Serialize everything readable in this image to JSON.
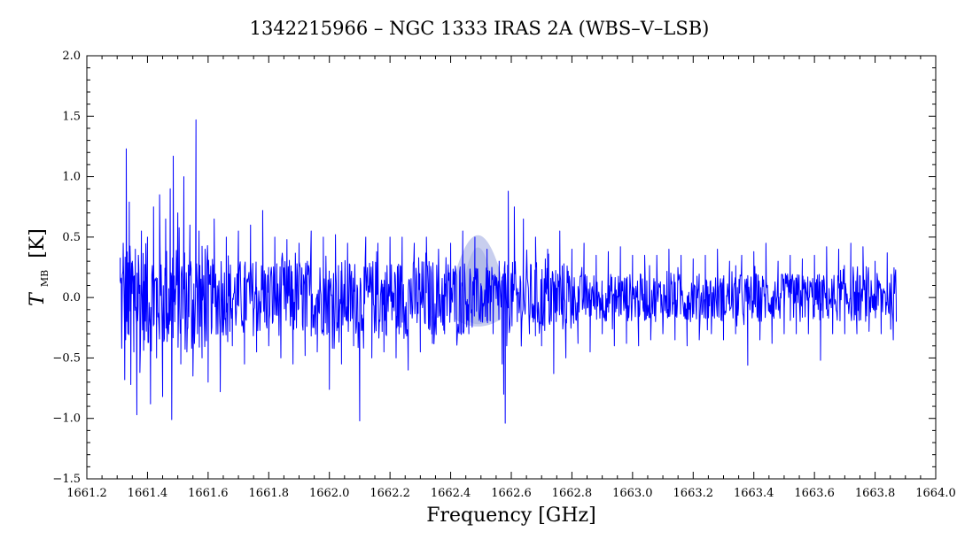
{
  "chart_data": {
    "type": "line",
    "title": "1342215966 – NGC 1333 IRAS 2A (WBS–V–LSB)",
    "xlabel": "Frequency [GHz]",
    "ylabel_main": "T",
    "ylabel_sub": "MB",
    "ylabel_unit": "[K]",
    "xlim": [
      1661.2,
      1664.0
    ],
    "ylim": [
      -1.5,
      2.0
    ],
    "xticks": [
      1661.2,
      1661.4,
      1661.6,
      1661.8,
      1662.0,
      1662.2,
      1662.4,
      1662.6,
      1662.8,
      1663.0,
      1663.2,
      1663.4,
      1663.6,
      1663.8,
      1664.0
    ],
    "xtick_labels": [
      "1661.2",
      "1661.4",
      "1661.6",
      "1661.8",
      "1662.0",
      "1662.2",
      "1662.4",
      "1662.6",
      "1662.8",
      "1663.0",
      "1663.2",
      "1663.4",
      "1663.6",
      "1663.8",
      "1664.0"
    ],
    "yticks": [
      -1.5,
      -1.0,
      -0.5,
      0.0,
      0.5,
      1.0,
      1.5,
      2.0
    ],
    "ytick_labels": [
      "−1.5",
      "−1.0",
      "−0.5",
      "0.0",
      "0.5",
      "1.0",
      "1.5",
      "2.0"
    ],
    "grid": false,
    "series": [
      {
        "color": "#0000ff",
        "x_start": 1661.31,
        "x_end": 1663.87,
        "points": [
          [
            1661.31,
            0.33
          ],
          [
            1661.315,
            -0.42
          ],
          [
            1661.32,
            0.45
          ],
          [
            1661.325,
            -0.68
          ],
          [
            1661.33,
            1.23
          ],
          [
            1661.335,
            -0.3
          ],
          [
            1661.34,
            0.79
          ],
          [
            1661.345,
            -0.72
          ],
          [
            1661.35,
            0.3
          ],
          [
            1661.355,
            -0.45
          ],
          [
            1661.36,
            0.4
          ],
          [
            1661.365,
            -0.97
          ],
          [
            1661.37,
            0.35
          ],
          [
            1661.375,
            -0.62
          ],
          [
            1661.38,
            0.55
          ],
          [
            1661.39,
            -0.35
          ],
          [
            1661.4,
            0.5
          ],
          [
            1661.41,
            -0.88
          ],
          [
            1661.42,
            0.75
          ],
          [
            1661.43,
            -0.5
          ],
          [
            1661.44,
            0.85
          ],
          [
            1661.45,
            -0.82
          ],
          [
            1661.46,
            0.65
          ],
          [
            1661.47,
            -0.3
          ],
          [
            1661.475,
            0.9
          ],
          [
            1661.48,
            -1.01
          ],
          [
            1661.485,
            1.17
          ],
          [
            1661.49,
            -0.2
          ],
          [
            1661.5,
            0.7
          ],
          [
            1661.51,
            -0.55
          ],
          [
            1661.52,
            1.0
          ],
          [
            1661.53,
            -0.45
          ],
          [
            1661.54,
            0.6
          ],
          [
            1661.55,
            -0.65
          ],
          [
            1661.56,
            1.47
          ],
          [
            1661.565,
            -0.3
          ],
          [
            1661.57,
            0.55
          ],
          [
            1661.58,
            -0.5
          ],
          [
            1661.59,
            0.4
          ],
          [
            1661.6,
            -0.7
          ],
          [
            1661.62,
            0.65
          ],
          [
            1661.64,
            -0.78
          ],
          [
            1661.66,
            0.5
          ],
          [
            1661.68,
            -0.4
          ],
          [
            1661.7,
            0.55
          ],
          [
            1661.72,
            -0.55
          ],
          [
            1661.74,
            0.6
          ],
          [
            1661.76,
            -0.45
          ],
          [
            1661.78,
            0.72
          ],
          [
            1661.8,
            -0.4
          ],
          [
            1661.82,
            0.5
          ],
          [
            1661.84,
            -0.5
          ],
          [
            1661.86,
            0.48
          ],
          [
            1661.88,
            -0.55
          ],
          [
            1661.9,
            0.45
          ],
          [
            1661.92,
            -0.48
          ],
          [
            1661.94,
            0.55
          ],
          [
            1661.96,
            -0.45
          ],
          [
            1661.98,
            0.5
          ],
          [
            1662.0,
            -0.76
          ],
          [
            1662.02,
            0.52
          ],
          [
            1662.04,
            -0.55
          ],
          [
            1662.06,
            0.45
          ],
          [
            1662.08,
            -0.4
          ],
          [
            1662.1,
            -1.02
          ],
          [
            1662.12,
            0.5
          ],
          [
            1662.14,
            -0.5
          ],
          [
            1662.16,
            0.45
          ],
          [
            1662.18,
            -0.45
          ],
          [
            1662.2,
            0.5
          ],
          [
            1662.22,
            -0.5
          ],
          [
            1662.24,
            0.5
          ],
          [
            1662.26,
            -0.6
          ],
          [
            1662.28,
            0.45
          ],
          [
            1662.3,
            -0.45
          ],
          [
            1662.32,
            0.5
          ],
          [
            1662.34,
            -0.38
          ],
          [
            1662.36,
            0.4
          ],
          [
            1662.38,
            -0.3
          ],
          [
            1662.4,
            0.45
          ],
          [
            1662.42,
            -0.35
          ],
          [
            1662.44,
            0.55
          ],
          [
            1662.46,
            -0.3
          ],
          [
            1662.48,
            0.5
          ],
          [
            1662.5,
            -0.2
          ],
          [
            1662.52,
            0.4
          ],
          [
            1662.54,
            -0.3
          ],
          [
            1662.56,
            0.3
          ],
          [
            1662.57,
            -0.55
          ],
          [
            1662.575,
            -0.8
          ],
          [
            1662.58,
            -1.04
          ],
          [
            1662.585,
            -0.4
          ],
          [
            1662.59,
            0.88
          ],
          [
            1662.6,
            0.2
          ],
          [
            1662.61,
            0.75
          ],
          [
            1662.62,
            -0.2
          ],
          [
            1662.64,
            0.65
          ],
          [
            1662.66,
            -0.3
          ],
          [
            1662.68,
            0.5
          ],
          [
            1662.7,
            -0.4
          ],
          [
            1662.72,
            0.4
          ],
          [
            1662.74,
            -0.63
          ],
          [
            1662.76,
            0.55
          ],
          [
            1662.78,
            -0.5
          ],
          [
            1662.8,
            0.4
          ],
          [
            1662.82,
            -0.38
          ],
          [
            1662.84,
            0.45
          ],
          [
            1662.86,
            -0.45
          ],
          [
            1662.88,
            0.35
          ],
          [
            1662.9,
            -0.3
          ],
          [
            1662.92,
            0.38
          ],
          [
            1662.94,
            -0.4
          ],
          [
            1662.96,
            0.42
          ],
          [
            1662.98,
            -0.38
          ],
          [
            1663.0,
            0.35
          ],
          [
            1663.02,
            -0.4
          ],
          [
            1663.04,
            0.35
          ],
          [
            1663.06,
            -0.35
          ],
          [
            1663.08,
            0.35
          ],
          [
            1663.1,
            -0.3
          ],
          [
            1663.12,
            0.4
          ],
          [
            1663.14,
            -0.35
          ],
          [
            1663.16,
            0.35
          ],
          [
            1663.18,
            -0.4
          ],
          [
            1663.2,
            0.32
          ],
          [
            1663.22,
            -0.35
          ],
          [
            1663.24,
            0.35
          ],
          [
            1663.26,
            -0.3
          ],
          [
            1663.28,
            0.4
          ],
          [
            1663.3,
            -0.35
          ],
          [
            1663.32,
            0.3
          ],
          [
            1663.34,
            -0.3
          ],
          [
            1663.36,
            0.35
          ],
          [
            1663.38,
            -0.56
          ],
          [
            1663.4,
            0.38
          ],
          [
            1663.42,
            -0.35
          ],
          [
            1663.44,
            0.45
          ],
          [
            1663.46,
            -0.38
          ],
          [
            1663.48,
            0.3
          ],
          [
            1663.5,
            -0.3
          ],
          [
            1663.52,
            0.35
          ],
          [
            1663.54,
            -0.3
          ],
          [
            1663.56,
            0.32
          ],
          [
            1663.58,
            -0.3
          ],
          [
            1663.6,
            0.35
          ],
          [
            1663.62,
            -0.52
          ],
          [
            1663.64,
            0.42
          ],
          [
            1663.66,
            -0.3
          ],
          [
            1663.68,
            0.4
          ],
          [
            1663.7,
            -0.3
          ],
          [
            1663.72,
            0.45
          ],
          [
            1663.74,
            -0.3
          ],
          [
            1663.76,
            0.42
          ],
          [
            1663.78,
            -0.28
          ],
          [
            1663.8,
            0.3
          ],
          [
            1663.82,
            -0.3
          ],
          [
            1663.84,
            0.37
          ],
          [
            1663.86,
            -0.35
          ],
          [
            1663.87,
            -0.2
          ]
        ],
        "noise_envelope": [
          {
            "x_from": 1661.31,
            "x_to": 1661.6,
            "amplitude": 0.45
          },
          {
            "x_from": 1661.6,
            "x_to": 1662.45,
            "amplitude": 0.32
          },
          {
            "x_from": 1662.45,
            "x_to": 1662.57,
            "amplitude": 0.25
          },
          {
            "x_from": 1662.57,
            "x_to": 1662.8,
            "amplitude": 0.3
          },
          {
            "x_from": 1662.8,
            "x_to": 1663.87,
            "amplitude": 0.2
          }
        ]
      }
    ],
    "overlay_band": {
      "color": "#9aa6e0",
      "center": 1662.49,
      "half_width": 0.075,
      "peak": 0.58,
      "baseline_low": -0.18,
      "baseline_high": 0.2
    }
  }
}
